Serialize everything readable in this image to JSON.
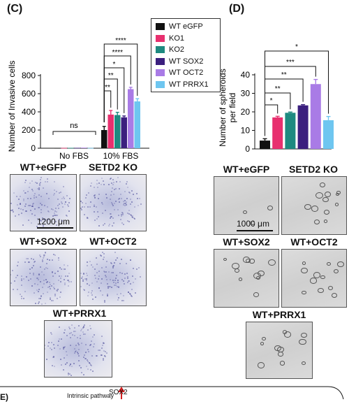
{
  "panel_c": {
    "letter": "(C)",
    "labels": [
      "WT+eGFP",
      "SETD2 KO",
      "WT+SOX2",
      "WT+OCT2",
      "WT+PRRX1"
    ],
    "scale": "1200 μm"
  },
  "panel_d": {
    "letter": "(D)",
    "labels": [
      "WT+eGFP",
      "SETD2 KO",
      "WT+SOX2",
      "WT+OCT2",
      "WT+PRRX1"
    ],
    "scale": "1000 μm"
  },
  "panel_e": {
    "letter": "E)",
    "pathway": "Intrinsic pathway",
    "gene": "SOX2"
  },
  "legend": [
    "WT eGFP",
    "KO1",
    "KO2",
    "WT SOX2",
    "WT OCT2",
    "WT PRRX1"
  ],
  "colors": [
    "#111111",
    "#e8306f",
    "#1e8a80",
    "#3b1f7e",
    "#a97be6",
    "#6ec6f0"
  ],
  "chart_data": [
    {
      "type": "bar",
      "categories": [
        "No FBS",
        "10% FBS"
      ],
      "ylabel": "Number of Invasive cells",
      "ylim": [
        0,
        800
      ],
      "yticks": [
        "0",
        "200",
        "400",
        "600",
        "800"
      ],
      "series": [
        {
          "name": "WT eGFP",
          "values": [
            2,
            200
          ],
          "errors": [
            0,
            40
          ]
        },
        {
          "name": "KO1",
          "values": [
            3,
            370
          ],
          "errors": [
            0,
            45
          ]
        },
        {
          "name": "KO2",
          "values": [
            4,
            365
          ],
          "errors": [
            0,
            30
          ]
        },
        {
          "name": "WT SOX2",
          "values": [
            4,
            340
          ],
          "errors": [
            0,
            15
          ]
        },
        {
          "name": "WT OCT2",
          "values": [
            6,
            650
          ],
          "errors": [
            0,
            20
          ]
        },
        {
          "name": "WT PRRX1",
          "values": [
            3,
            515
          ],
          "errors": [
            0,
            30
          ]
        }
      ],
      "significance": [
        "ns",
        "**",
        "**",
        "*",
        "****",
        "****"
      ]
    },
    {
      "type": "bar",
      "categories": [
        ""
      ],
      "ylabel": "Number of spheroids per field",
      "ylim": [
        0,
        40
      ],
      "yticks": [
        "0",
        "10",
        "20",
        "30",
        "40"
      ],
      "series": [
        {
          "name": "WT eGFP",
          "values": [
            4.5
          ],
          "errors": [
            1
          ]
        },
        {
          "name": "KO1",
          "values": [
            17
          ],
          "errors": [
            0.6
          ]
        },
        {
          "name": "KO2",
          "values": [
            19.5
          ],
          "errors": [
            0.4
          ]
        },
        {
          "name": "WT SOX2",
          "values": [
            23.5
          ],
          "errors": [
            0.4
          ]
        },
        {
          "name": "WT OCT2",
          "values": [
            35
          ],
          "errors": [
            2.5
          ]
        },
        {
          "name": "WT PRRX1",
          "values": [
            15.5
          ],
          "errors": [
            2
          ]
        }
      ],
      "significance": [
        "*",
        "**",
        "**",
        "***",
        "*"
      ]
    }
  ]
}
